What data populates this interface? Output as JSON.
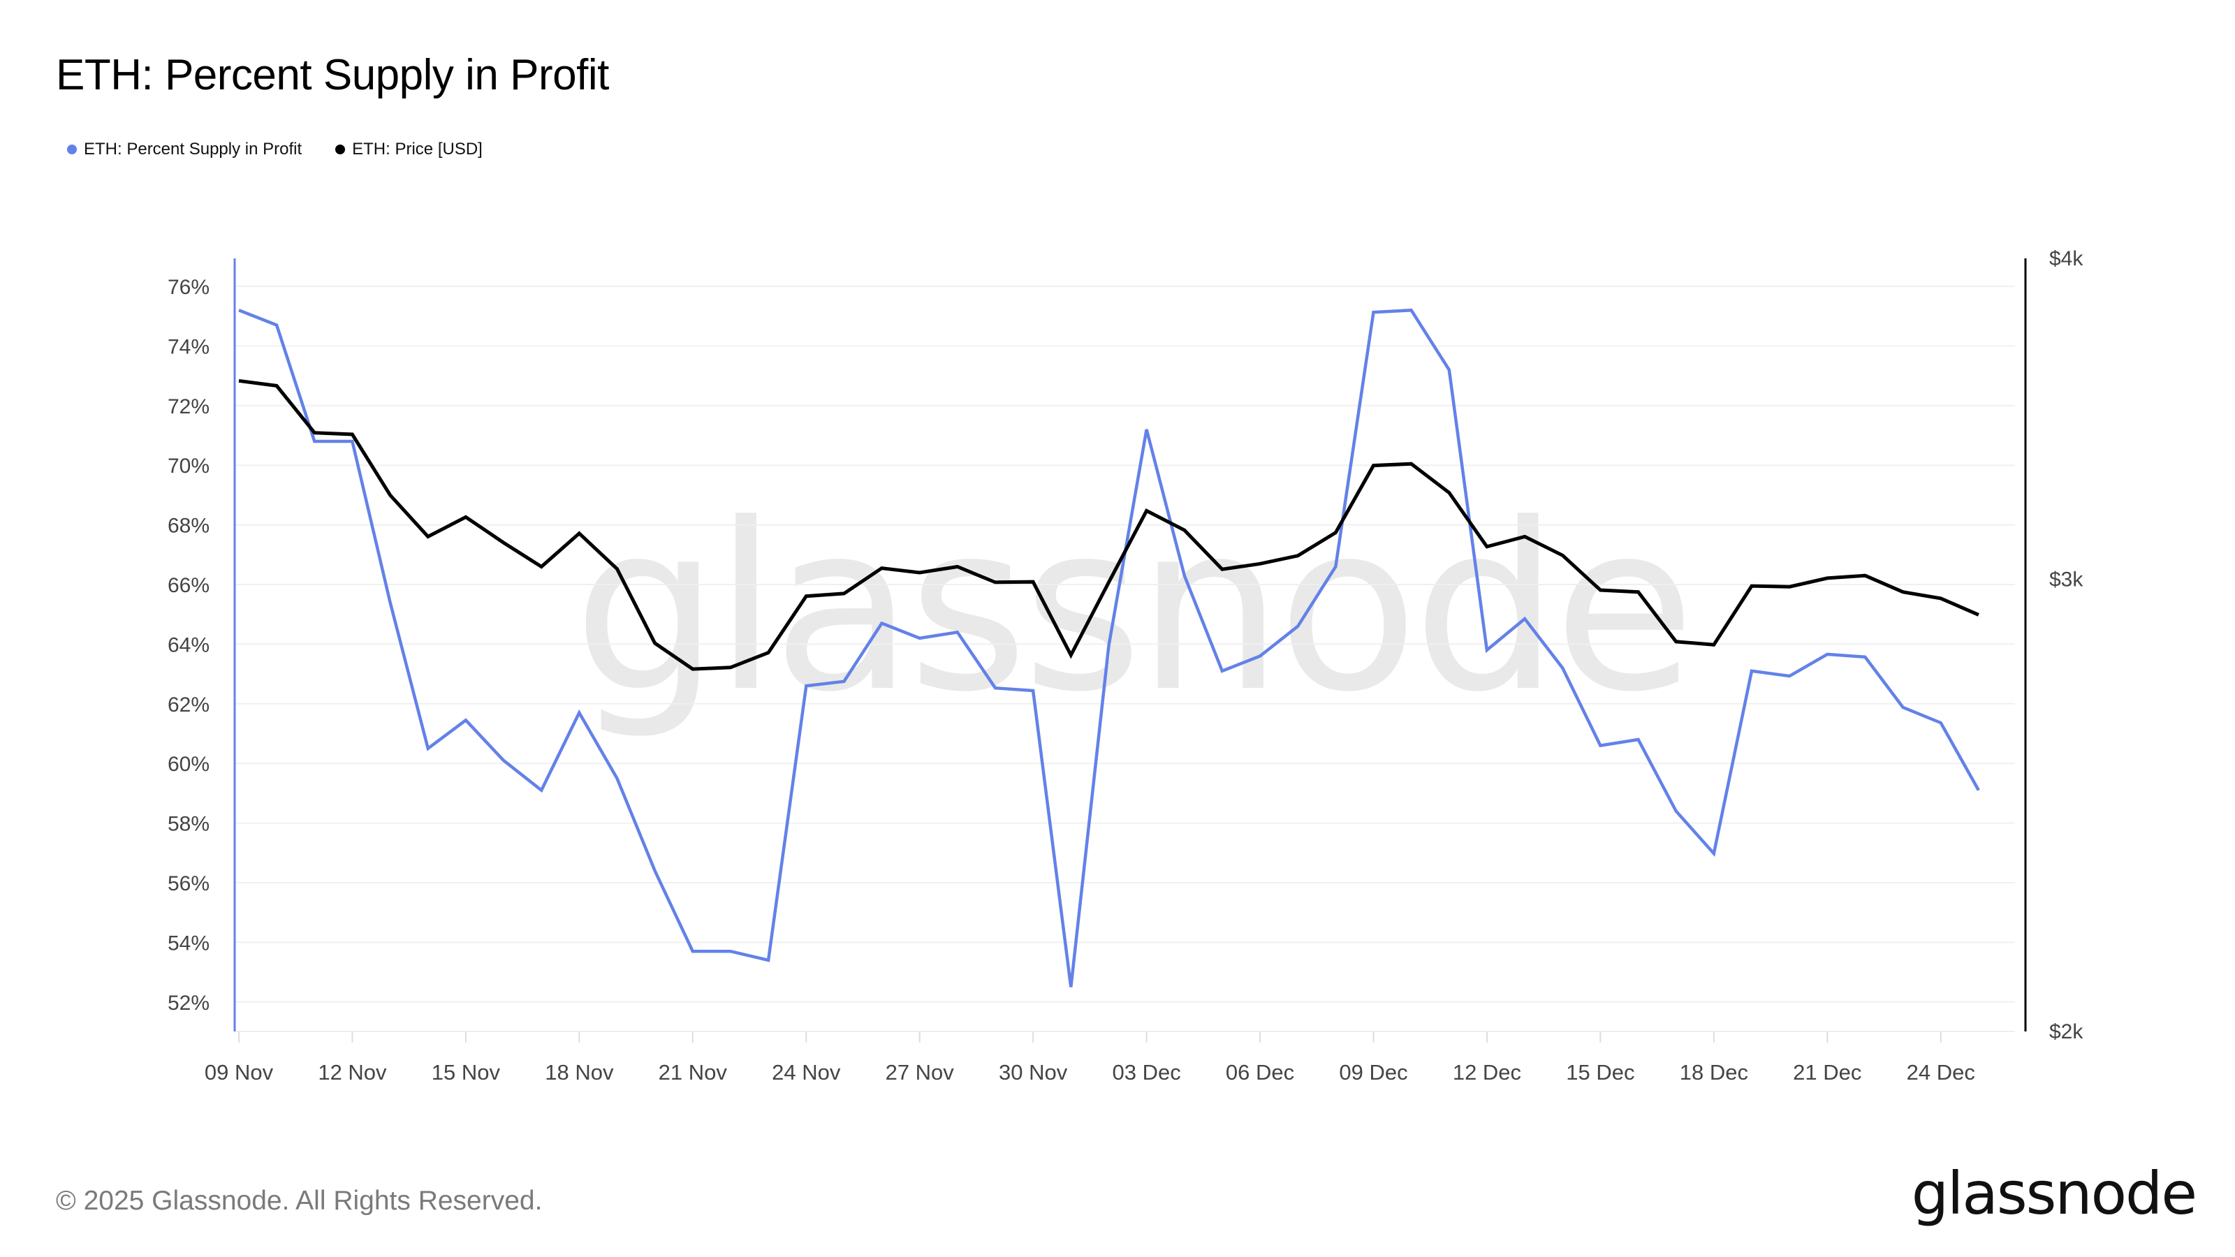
{
  "title": "ETH: Percent Supply in Profit",
  "legend": [
    {
      "label": "ETH: Percent Supply in Profit",
      "color": "#6381E8"
    },
    {
      "label": "ETH: Price [USD]",
      "color": "#000000"
    }
  ],
  "footer": {
    "copyright": "© 2025 Glassnode. All Rights Reserved.",
    "logo": "glassnode"
  },
  "watermark": "glassnode",
  "chart_data": {
    "type": "line",
    "title": "ETH: Percent Supply in Profit",
    "x_start": "2024-11-09",
    "x_ticks": [
      "09 Nov",
      "12 Nov",
      "15 Nov",
      "18 Nov",
      "21 Nov",
      "24 Nov",
      "27 Nov",
      "30 Nov",
      "03 Dec",
      "06 Dec",
      "09 Dec",
      "12 Dec",
      "15 Dec",
      "18 Dec",
      "21 Dec",
      "24 Dec"
    ],
    "y_left": {
      "ticks": [
        "52%",
        "54%",
        "56%",
        "58%",
        "60%",
        "62%",
        "64%",
        "66%",
        "68%",
        "70%",
        "72%",
        "74%",
        "76%"
      ],
      "tick_values": [
        52,
        54,
        56,
        58,
        60,
        62,
        64,
        66,
        68,
        70,
        72,
        74,
        76
      ],
      "range": [
        51.2,
        77
      ]
    },
    "y_right": {
      "scale": "log",
      "ticks": [
        "$2k",
        "$3k",
        "$4k"
      ],
      "tick_values": [
        2000,
        3000,
        4000
      ],
      "range": [
        2000,
        4000
      ]
    },
    "grid": true,
    "legend_position": "top-left",
    "x": [
      "09 Nov",
      "10 Nov",
      "11 Nov",
      "12 Nov",
      "13 Nov",
      "14 Nov",
      "15 Nov",
      "16 Nov",
      "17 Nov",
      "18 Nov",
      "19 Nov",
      "20 Nov",
      "21 Nov",
      "22 Nov",
      "23 Nov",
      "24 Nov",
      "25 Nov",
      "26 Nov",
      "27 Nov",
      "28 Nov",
      "29 Nov",
      "30 Nov",
      "01 Dec",
      "02 Dec",
      "03 Dec",
      "04 Dec",
      "05 Dec",
      "06 Dec",
      "07 Dec",
      "08 Dec",
      "09 Dec",
      "10 Dec",
      "11 Dec",
      "12 Dec",
      "13 Dec",
      "14 Dec",
      "15 Dec",
      "16 Dec",
      "17 Dec",
      "18 Dec",
      "19 Dec",
      "20 Dec",
      "21 Dec",
      "22 Dec",
      "23 Dec",
      "24 Dec",
      "25 Dec"
    ],
    "series": [
      {
        "name": "ETH: Percent Supply in Profit",
        "axis": "left",
        "color": "#6381E8",
        "values": [
          75.2,
          74.7,
          70.8,
          70.8,
          65.4,
          60.5,
          61.45,
          60.1,
          59.1,
          61.7,
          59.5,
          56.4,
          53.7,
          53.7,
          53.4,
          62.6,
          62.75,
          64.7,
          64.2,
          64.4,
          62.53,
          62.44,
          52.5,
          63.95,
          71.2,
          66.3,
          63.1,
          63.6,
          64.6,
          66.6,
          75.13,
          75.2,
          73.2,
          63.8,
          64.85,
          63.2,
          60.6,
          60.8,
          58.4,
          56.98,
          63.1,
          62.93,
          63.66,
          63.57,
          61.88,
          61.36,
          59.1
        ]
      },
      {
        "name": "ETH: Price [USD]",
        "axis": "right",
        "color": "#000000",
        "values": [
          3582,
          3566,
          3419,
          3414,
          3233,
          3115,
          3170,
          3098,
          3032,
          3124,
          3026,
          2831,
          2766,
          2770,
          2807,
          2953,
          2960,
          3028,
          3016,
          3032,
          2990,
          2991,
          2801,
          2990,
          3188,
          3133,
          3025,
          3040,
          3062,
          3126,
          3320,
          3325,
          3240,
          3087,
          3115,
          3063,
          2969,
          2964,
          2835,
          2827,
          2980,
          2978,
          3001,
          3008,
          2964,
          2947,
          2904
        ]
      }
    ]
  }
}
